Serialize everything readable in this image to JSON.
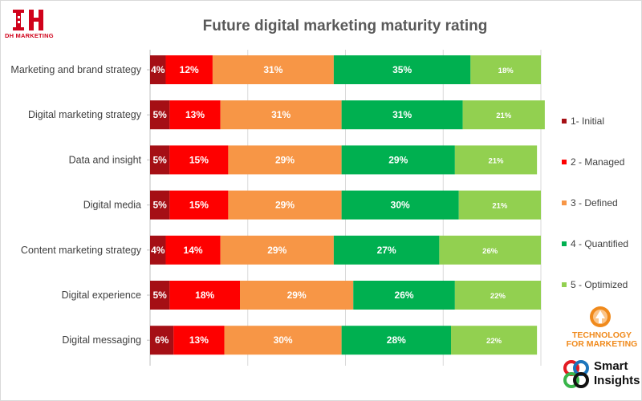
{
  "brand": {
    "dh_mark": "DH",
    "dh_name": "DH MARKETING",
    "tfm_line1": "TECHNOLOGY",
    "tfm_line2": "FOR MARKETING",
    "si_line1": "Smart",
    "si_line2": "Insights"
  },
  "chart_data": {
    "type": "bar",
    "orientation": "horizontal",
    "stacked": true,
    "title": "Future digital marketing maturity rating",
    "xlabel": "",
    "ylabel": "",
    "xlim": [
      0,
      100
    ],
    "grid": true,
    "legend_position": "right",
    "categories": [
      "Marketing and brand strategy",
      "Digital marketing strategy",
      "Data and insight",
      "Digital media",
      "Content marketing strategy",
      "Digital experience",
      "Digital messaging"
    ],
    "series": [
      {
        "name": "1- Initial",
        "color": "#a50f15",
        "values": [
          4,
          5,
          5,
          5,
          4,
          5,
          6
        ]
      },
      {
        "name": "2 - Managed",
        "color": "#fe0000",
        "values": [
          12,
          13,
          15,
          15,
          14,
          18,
          13
        ]
      },
      {
        "name": "3 - Defined",
        "color": "#f79646",
        "values": [
          31,
          31,
          29,
          29,
          29,
          29,
          30
        ]
      },
      {
        "name": "4 - Quantified",
        "color": "#00b050",
        "values": [
          35,
          31,
          29,
          30,
          27,
          26,
          28
        ]
      },
      {
        "name": "5 - Optimized",
        "color": "#92d050",
        "values": [
          18,
          21,
          21,
          21,
          26,
          22,
          22
        ]
      }
    ],
    "value_suffix": "%"
  }
}
